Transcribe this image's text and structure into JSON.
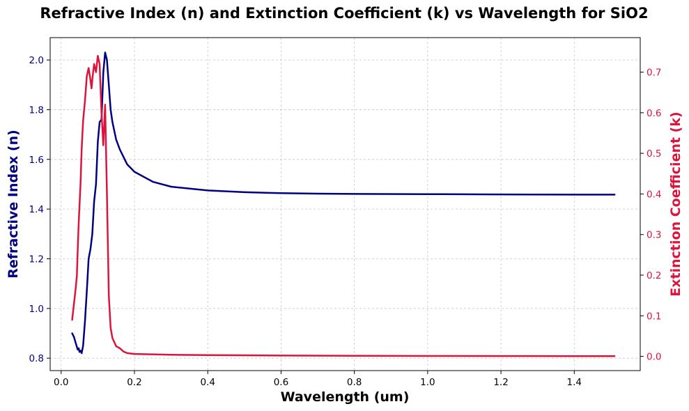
{
  "chart_data": {
    "type": "line",
    "title": "Refractive Index (n) and Extinction Coefficient (k) vs Wavelength for SiO2",
    "xlabel": "Wavelength (um)",
    "ylabel": "Refractive Index (n)",
    "ylabel_right": "Extinction Coefficient (k)",
    "xlim": [
      -0.03,
      1.58
    ],
    "ylim": [
      0.75,
      2.09
    ],
    "ylim_right": [
      -0.035,
      0.785
    ],
    "xticks": [
      0.0,
      0.2,
      0.4,
      0.6,
      0.8,
      1.0,
      1.2,
      1.4
    ],
    "xtick_labels": [
      "0.0",
      "0.2",
      "0.4",
      "0.6",
      "0.8",
      "1.0",
      "1.2",
      "1.4"
    ],
    "yticks": [
      0.8,
      1.0,
      1.2,
      1.4,
      1.6,
      1.8,
      2.0
    ],
    "ytick_labels": [
      "0.8",
      "1.0",
      "1.2",
      "1.4",
      "1.6",
      "1.8",
      "2.0"
    ],
    "yticks_right": [
      0.0,
      0.1,
      0.2,
      0.3,
      0.4,
      0.5,
      0.6,
      0.7
    ],
    "ytick_labels_right": [
      "0.0",
      "0.1",
      "0.2",
      "0.3",
      "0.4",
      "0.5",
      "0.6",
      "0.7"
    ],
    "grid": true,
    "colors": {
      "n": "#000080",
      "k": "#dc143c",
      "axis": "#000000"
    },
    "series": [
      {
        "key": "n",
        "axis": "left",
        "x": [
          0.03,
          0.035,
          0.04,
          0.045,
          0.048,
          0.05,
          0.053,
          0.056,
          0.06,
          0.065,
          0.07,
          0.075,
          0.08,
          0.085,
          0.09,
          0.095,
          0.1,
          0.105,
          0.11,
          0.115,
          0.12,
          0.125,
          0.13,
          0.135,
          0.14,
          0.15,
          0.16,
          0.18,
          0.2,
          0.25,
          0.3,
          0.4,
          0.5,
          0.6,
          0.7,
          0.8,
          1.0,
          1.2,
          1.4,
          1.51
        ],
        "values": [
          0.9,
          0.885,
          0.86,
          0.835,
          0.84,
          0.825,
          0.83,
          0.82,
          0.85,
          0.95,
          1.07,
          1.2,
          1.24,
          1.3,
          1.43,
          1.5,
          1.67,
          1.75,
          1.76,
          1.95,
          2.03,
          2.0,
          1.9,
          1.8,
          1.75,
          1.68,
          1.64,
          1.58,
          1.55,
          1.51,
          1.49,
          1.475,
          1.468,
          1.464,
          1.462,
          1.461,
          1.46,
          1.459,
          1.458,
          1.458
        ]
      },
      {
        "key": "k",
        "axis": "right",
        "x": [
          0.03,
          0.035,
          0.04,
          0.043,
          0.045,
          0.048,
          0.05,
          0.053,
          0.056,
          0.06,
          0.065,
          0.07,
          0.075,
          0.08,
          0.083,
          0.086,
          0.09,
          0.095,
          0.1,
          0.105,
          0.11,
          0.115,
          0.12,
          0.125,
          0.13,
          0.135,
          0.14,
          0.145,
          0.15,
          0.16,
          0.17,
          0.18,
          0.2,
          0.3,
          0.4,
          0.6,
          0.8,
          1.0,
          1.2,
          1.4,
          1.51
        ],
        "values": [
          0.09,
          0.13,
          0.17,
          0.2,
          0.26,
          0.33,
          0.37,
          0.43,
          0.51,
          0.58,
          0.63,
          0.69,
          0.71,
          0.68,
          0.66,
          0.69,
          0.72,
          0.7,
          0.74,
          0.72,
          0.6,
          0.52,
          0.62,
          0.4,
          0.15,
          0.07,
          0.045,
          0.035,
          0.025,
          0.02,
          0.012,
          0.008,
          0.006,
          0.004,
          0.003,
          0.002,
          0.0015,
          0.001,
          0.0008,
          0.0006,
          0.0005
        ]
      }
    ]
  }
}
